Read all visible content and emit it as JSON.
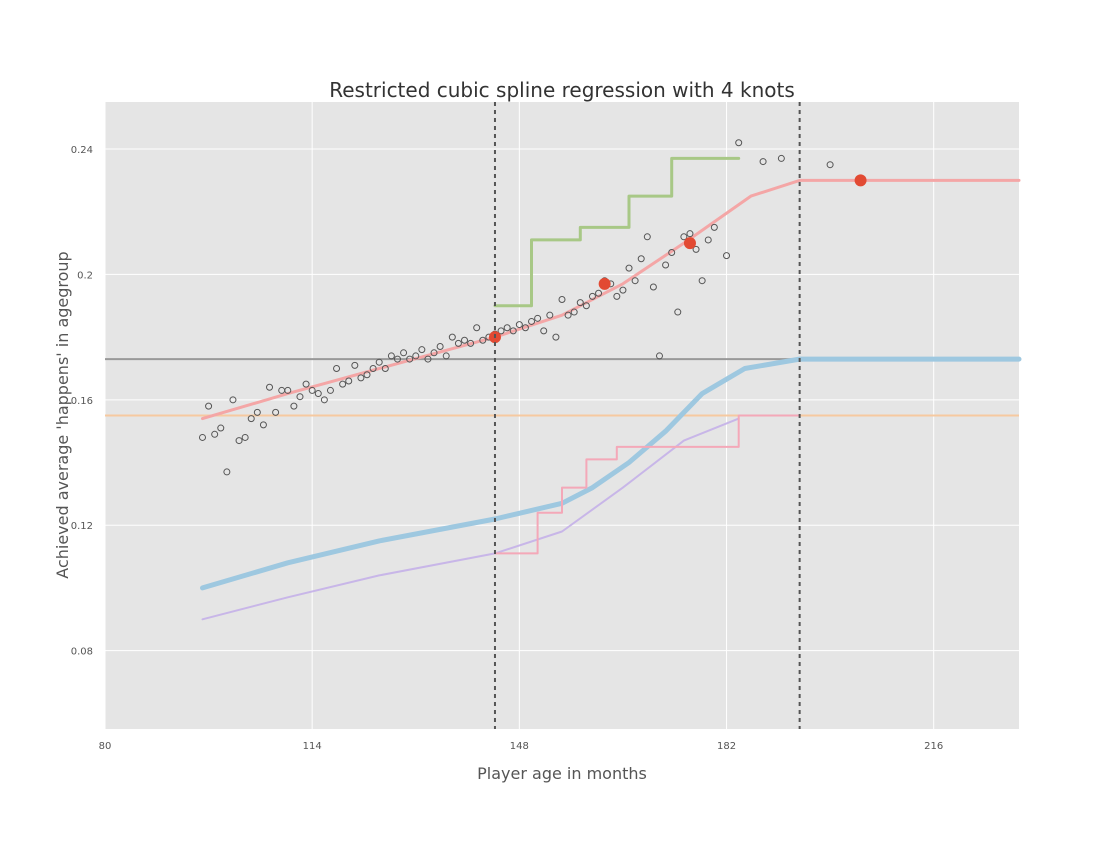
{
  "chart_data": {
    "type": "scatter",
    "title": "Restricted cubic spline regression with 4 knots",
    "xlabel": "Player age in months",
    "ylabel": "Achieved average 'happens' in agegroup",
    "xlim": [
      80,
      230
    ],
    "ylim": [
      0.055,
      0.255
    ],
    "x_ticks": [
      80,
      114,
      148,
      182,
      216
    ],
    "y_ticks": [
      0.08,
      0.12,
      0.16,
      0.2,
      0.24
    ],
    "x_tick_labels": [
      "80",
      "114",
      "148",
      "182",
      "216"
    ],
    "y_tick_labels": [
      "0.08",
      "0.12",
      "0.16",
      "0.2",
      "0.24"
    ],
    "grid": true,
    "colors": {
      "background": "#e5e5e5",
      "grid": "#ffffff",
      "points": "#555555",
      "spline": "#f4a6a6",
      "knot": "#e24a33",
      "green_step": "#a8c886",
      "blue_curve": "#9ec8e0",
      "purple_curve": "#c8b6e8",
      "pink_step": "#f4a8b8",
      "hline_gray": "#999999",
      "hline_orange": "#f6c9a0",
      "knot_lines": "#555555"
    },
    "knot_lines_x": [
      144,
      194
    ],
    "hlines": [
      {
        "y": 0.173,
        "color_key": "hline_gray"
      },
      {
        "y": 0.155,
        "color_key": "hline_orange"
      }
    ],
    "knots": [
      {
        "x": 144,
        "y": 0.18
      },
      {
        "x": 162,
        "y": 0.197
      },
      {
        "x": 176,
        "y": 0.21
      },
      {
        "x": 204,
        "y": 0.23
      }
    ],
    "series": [
      {
        "kind": "line",
        "color_key": "spline",
        "width": 3,
        "x": [
          96,
          110,
          125,
          144,
          155,
          165,
          175,
          186,
          194,
          230
        ],
        "y": [
          0.154,
          0.162,
          0.17,
          0.18,
          0.187,
          0.197,
          0.21,
          0.225,
          0.23,
          0.23
        ]
      },
      {
        "kind": "line",
        "color_key": "blue_curve",
        "width": 5,
        "x": [
          96,
          110,
          125,
          144,
          155,
          160,
          166,
          172,
          178,
          185,
          194,
          230
        ],
        "y": [
          0.1,
          0.108,
          0.115,
          0.122,
          0.127,
          0.132,
          0.14,
          0.15,
          0.162,
          0.17,
          0.173,
          0.173
        ]
      },
      {
        "kind": "line",
        "color_key": "purple_curve",
        "width": 2,
        "x": [
          96,
          110,
          125,
          144,
          155,
          165,
          175,
          184
        ],
        "y": [
          0.09,
          0.097,
          0.104,
          0.111,
          0.118,
          0.132,
          0.147,
          0.154
        ]
      },
      {
        "kind": "step",
        "color_key": "green_step",
        "width": 3,
        "x": [
          144,
          150,
          150,
          158,
          158,
          166,
          166,
          173,
          173,
          184
        ],
        "y": [
          0.19,
          0.19,
          0.211,
          0.211,
          0.215,
          0.215,
          0.225,
          0.225,
          0.237,
          0.237
        ]
      },
      {
        "kind": "step",
        "color_key": "pink_step",
        "width": 2,
        "x": [
          144,
          151,
          151,
          155,
          155,
          159,
          159,
          164,
          164,
          184,
          184,
          194
        ],
        "y": [
          0.111,
          0.111,
          0.124,
          0.124,
          0.132,
          0.132,
          0.141,
          0.141,
          0.145,
          0.145,
          0.155,
          0.155
        ]
      }
    ],
    "points": {
      "x": [
        96,
        97,
        98,
        99,
        100,
        101,
        102,
        103,
        104,
        105,
        106,
        107,
        108,
        109,
        110,
        111,
        112,
        113,
        114,
        115,
        116,
        117,
        118,
        119,
        120,
        121,
        122,
        123,
        124,
        125,
        126,
        127,
        128,
        129,
        130,
        131,
        132,
        133,
        134,
        135,
        136,
        137,
        138,
        139,
        140,
        141,
        142,
        143,
        144,
        145,
        146,
        147,
        148,
        149,
        150,
        151,
        152,
        153,
        154,
        155,
        156,
        157,
        158,
        159,
        160,
        161,
        162,
        163,
        164,
        165,
        166,
        167,
        168,
        169,
        170,
        171,
        172,
        173,
        174,
        175,
        176,
        177,
        178,
        179,
        180,
        182,
        184,
        188,
        191,
        199
      ],
      "y": [
        0.148,
        0.158,
        0.149,
        0.151,
        0.137,
        0.16,
        0.147,
        0.148,
        0.154,
        0.156,
        0.152,
        0.164,
        0.156,
        0.163,
        0.163,
        0.158,
        0.161,
        0.165,
        0.163,
        0.162,
        0.16,
        0.163,
        0.17,
        0.165,
        0.166,
        0.171,
        0.167,
        0.168,
        0.17,
        0.172,
        0.17,
        0.174,
        0.173,
        0.175,
        0.173,
        0.174,
        0.176,
        0.173,
        0.175,
        0.177,
        0.174,
        0.18,
        0.178,
        0.179,
        0.178,
        0.183,
        0.179,
        0.18,
        0.181,
        0.182,
        0.183,
        0.182,
        0.184,
        0.183,
        0.185,
        0.186,
        0.182,
        0.187,
        0.18,
        0.192,
        0.187,
        0.188,
        0.191,
        0.19,
        0.193,
        0.194,
        0.198,
        0.197,
        0.193,
        0.195,
        0.202,
        0.198,
        0.205,
        0.212,
        0.196,
        0.174,
        0.203,
        0.207,
        0.188,
        0.212,
        0.213,
        0.208,
        0.198,
        0.211,
        0.215,
        0.206,
        0.242,
        0.236,
        0.237,
        0.235
      ]
    }
  }
}
